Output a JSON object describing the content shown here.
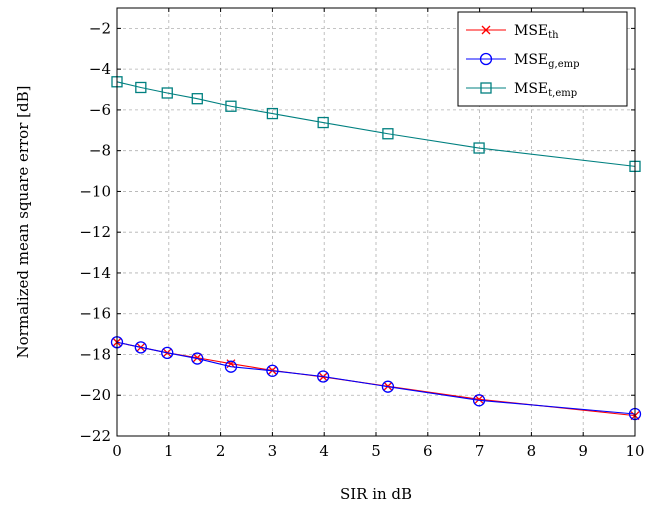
{
  "chart_data": {
    "type": "line",
    "xlabel": "SIR in dB",
    "ylabel": "Normalized mean square error [dB]",
    "xlim": [
      0,
      10
    ],
    "ylim": [
      -22,
      -1
    ],
    "xticks": [
      0,
      1,
      2,
      3,
      4,
      5,
      6,
      7,
      8,
      9,
      10
    ],
    "yticks": [
      -22,
      -20,
      -18,
      -16,
      -14,
      -12,
      -10,
      -8,
      -6,
      -4,
      -2
    ],
    "grid": true,
    "legend_position": "top-right",
    "series": [
      {
        "name": "MSE_th",
        "name_main": "MSE",
        "name_sub": "th",
        "color": "#ff0000",
        "marker": "x",
        "x": [
          0,
          0.46,
          0.97,
          1.55,
          2.2,
          3.0,
          3.98,
          5.23,
          6.99,
          10
        ],
        "y": [
          -17.4,
          -17.65,
          -17.92,
          -18.16,
          -18.45,
          -18.78,
          -19.1,
          -19.56,
          -20.2,
          -21.0
        ]
      },
      {
        "name": "MSE_g,emp",
        "name_main": "MSE",
        "name_sub": "g,emp",
        "color": "#0000ff",
        "marker": "circle",
        "x": [
          0,
          0.46,
          0.97,
          1.55,
          2.2,
          3.0,
          3.98,
          5.23,
          6.99,
          10
        ],
        "y": [
          -17.4,
          -17.65,
          -17.92,
          -18.2,
          -18.6,
          -18.8,
          -19.08,
          -19.58,
          -20.25,
          -20.92
        ]
      },
      {
        "name": "MSE_t,emp",
        "name_main": "MSE",
        "name_sub": "t,emp",
        "color": "#008080",
        "marker": "square",
        "x": [
          0,
          0.46,
          0.97,
          1.55,
          2.2,
          3.0,
          3.98,
          5.23,
          6.99,
          10
        ],
        "y": [
          -4.62,
          -4.9,
          -5.17,
          -5.45,
          -5.82,
          -6.18,
          -6.62,
          -7.17,
          -7.87,
          -8.77
        ]
      }
    ]
  }
}
